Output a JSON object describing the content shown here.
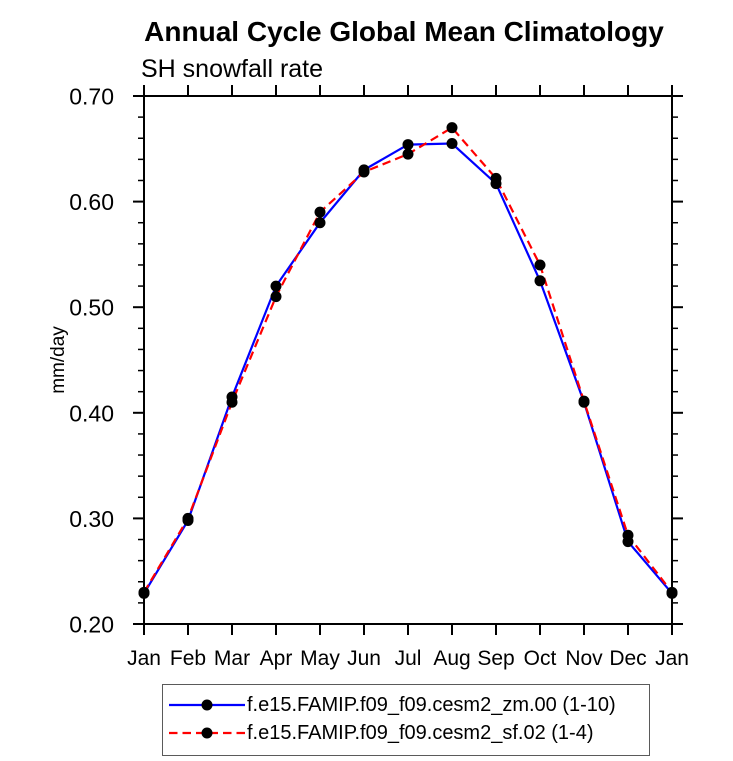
{
  "page": {
    "background": "#ffffff",
    "axis_color": "#000000"
  },
  "chart_data": {
    "type": "line",
    "title": "Annual Cycle Global Mean Climatology",
    "subtitle": "SH snowfall rate",
    "ylabel": "mm/day",
    "xlabel": "",
    "x_categories": [
      "Jan",
      "Feb",
      "Mar",
      "Apr",
      "May",
      "Jun",
      "Jul",
      "Aug",
      "Sep",
      "Oct",
      "Nov",
      "Dec",
      "Jan"
    ],
    "ylim": [
      0.2,
      0.7
    ],
    "ytick_labels": [
      "0.20",
      "0.30",
      "0.40",
      "0.50",
      "0.60",
      "0.70"
    ],
    "ytick_step": 0.1,
    "yminor_step": 0.02,
    "grid": false,
    "legend_position": "bottom",
    "marker": {
      "shape": "filled-circle",
      "color": "#000000",
      "radius": 5.5
    },
    "series": [
      {
        "name": "f.e15.FAMIP.f09_f09.cesm2_zm.00 (1-10)",
        "color": "#0000ff",
        "line_style": "solid",
        "values": [
          0.229,
          0.298,
          0.415,
          0.52,
          0.58,
          0.63,
          0.654,
          0.655,
          0.617,
          0.525,
          0.41,
          0.278,
          0.229
        ]
      },
      {
        "name": "f.e15.FAMIP.f09_f09.cesm2_sf.02 (1-4)",
        "color": "#ff0000",
        "line_style": "dashed",
        "values": [
          0.23,
          0.3,
          0.41,
          0.51,
          0.59,
          0.628,
          0.645,
          0.67,
          0.622,
          0.54,
          0.411,
          0.284,
          0.23
        ]
      }
    ]
  }
}
